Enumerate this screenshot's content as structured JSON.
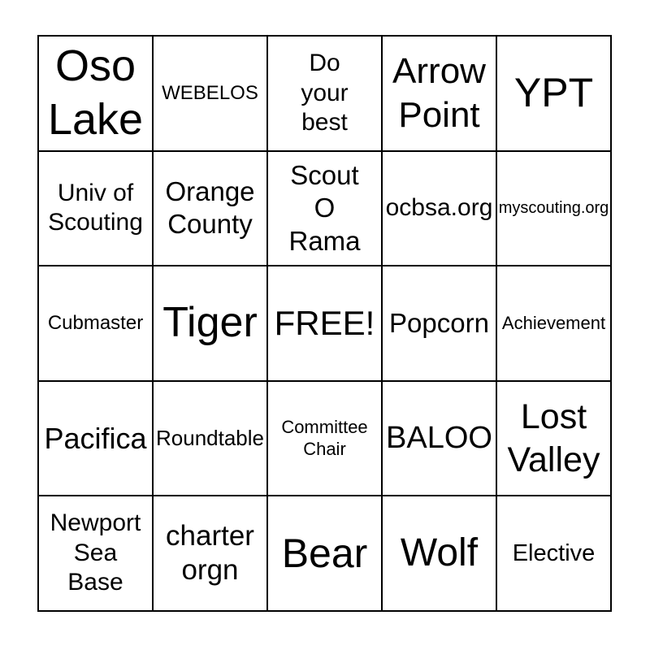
{
  "colors": {
    "background": "#ffffff",
    "grid_lines": "#000000",
    "text": "#000000"
  },
  "bingo_card": {
    "rows": 5,
    "cols": 5,
    "free_space_label": "FREE!",
    "cells": [
      {
        "text": "Oso\nLake"
      },
      {
        "text": "WEBELOS"
      },
      {
        "text": "Do\nyour\nbest"
      },
      {
        "text": "Arrow\nPoint"
      },
      {
        "text": "YPT"
      },
      {
        "text": "Univ of\nScouting"
      },
      {
        "text": "Orange\nCounty"
      },
      {
        "text": "Scout\nO\nRama"
      },
      {
        "text": "ocbsa.org"
      },
      {
        "text": "myscouting.org"
      },
      {
        "text": "Cubmaster"
      },
      {
        "text": "Tiger"
      },
      {
        "text": "FREE!"
      },
      {
        "text": "Popcorn"
      },
      {
        "text": "Achievement"
      },
      {
        "text": "Pacifica"
      },
      {
        "text": "Roundtable"
      },
      {
        "text": "Committee\nChair"
      },
      {
        "text": "BALOO"
      },
      {
        "text": "Lost\nValley"
      },
      {
        "text": "Newport\nSea\nBase"
      },
      {
        "text": "charter\norgn"
      },
      {
        "text": "Bear"
      },
      {
        "text": "Wolf"
      },
      {
        "text": "Elective"
      }
    ]
  }
}
